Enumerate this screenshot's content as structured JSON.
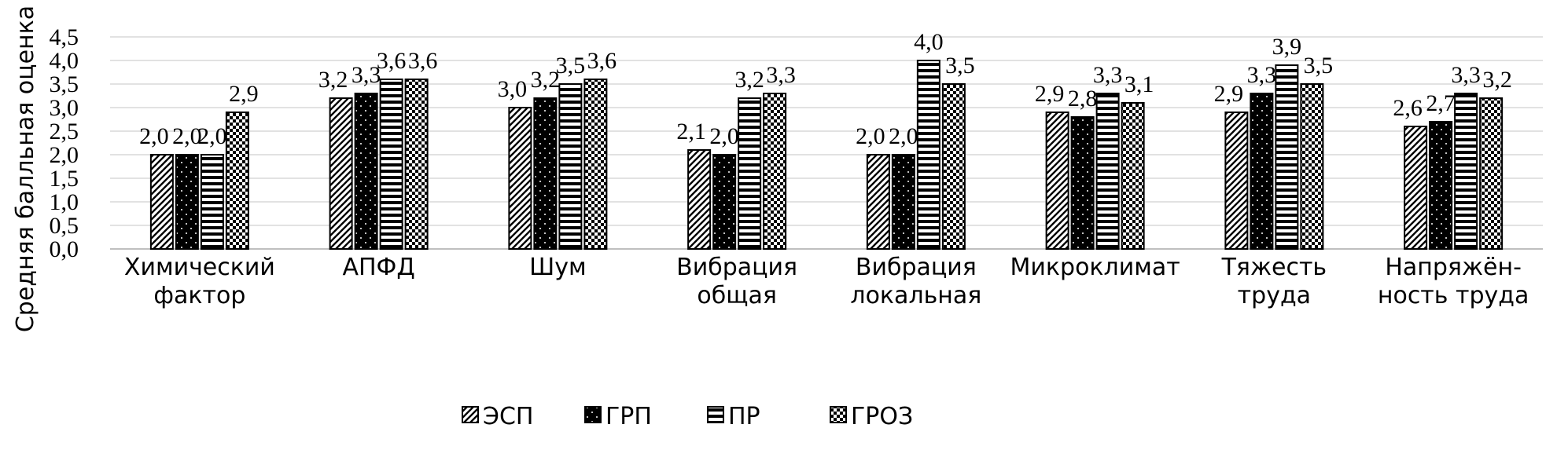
{
  "chart_data": {
    "type": "bar",
    "ylabel": "Средняя балльная оценка",
    "ylim": [
      0,
      4.5
    ],
    "y_ticks": [
      "0,0",
      "0,5",
      "1,0",
      "1,5",
      "2,0",
      "2,5",
      "3,0",
      "3,5",
      "4,0",
      "4,5"
    ],
    "grid": true,
    "legend_position": "bottom",
    "categories": [
      [
        "Химический",
        "фактор"
      ],
      [
        "АПФД"
      ],
      [
        "Шум"
      ],
      [
        "Вибрация",
        "общая"
      ],
      [
        "Вибрация",
        "локальная"
      ],
      [
        "Микроклимат"
      ],
      [
        "Тяжесть",
        "труда"
      ],
      [
        "Напряжён-",
        "ность труда"
      ]
    ],
    "series": [
      {
        "name": "ЭСП",
        "pattern": "diagonal-hatch",
        "values": [
          2.0,
          3.2,
          3.0,
          2.1,
          2.0,
          2.9,
          2.9,
          2.6
        ],
        "labels": [
          "2,0",
          "3,2",
          "3,0",
          "2,1",
          "2,0",
          "2,9",
          "2,9",
          "2,6"
        ]
      },
      {
        "name": "ГРП",
        "pattern": "black-dotted",
        "values": [
          2.0,
          3.3,
          3.2,
          2.0,
          2.0,
          2.8,
          3.3,
          2.7
        ],
        "labels": [
          "2,0",
          "3,3",
          "3,2",
          "2,0",
          "2,0",
          "2,8",
          "3,3",
          "2,7"
        ]
      },
      {
        "name": "ПР",
        "pattern": "horizontal-stripes",
        "values": [
          2.0,
          3.6,
          3.5,
          3.2,
          4.0,
          3.3,
          3.9,
          3.3
        ],
        "labels": [
          "2,0",
          "3,6",
          "3,5",
          "3,2",
          "4,0",
          "3,3",
          "3,9",
          "3,3"
        ]
      },
      {
        "name": "ГРОЗ",
        "pattern": "checker",
        "values": [
          2.9,
          3.6,
          3.6,
          3.3,
          3.5,
          3.1,
          3.5,
          3.2
        ],
        "labels": [
          "2,9",
          "3,6",
          "3,6",
          "3,3",
          "3,5",
          "3,1",
          "3,5",
          "3,2"
        ]
      }
    ],
    "colors": {
      "ink": "#000000",
      "grid": "#d9d9d9",
      "axis": "#bfbfbf",
      "background": "#ffffff"
    }
  }
}
